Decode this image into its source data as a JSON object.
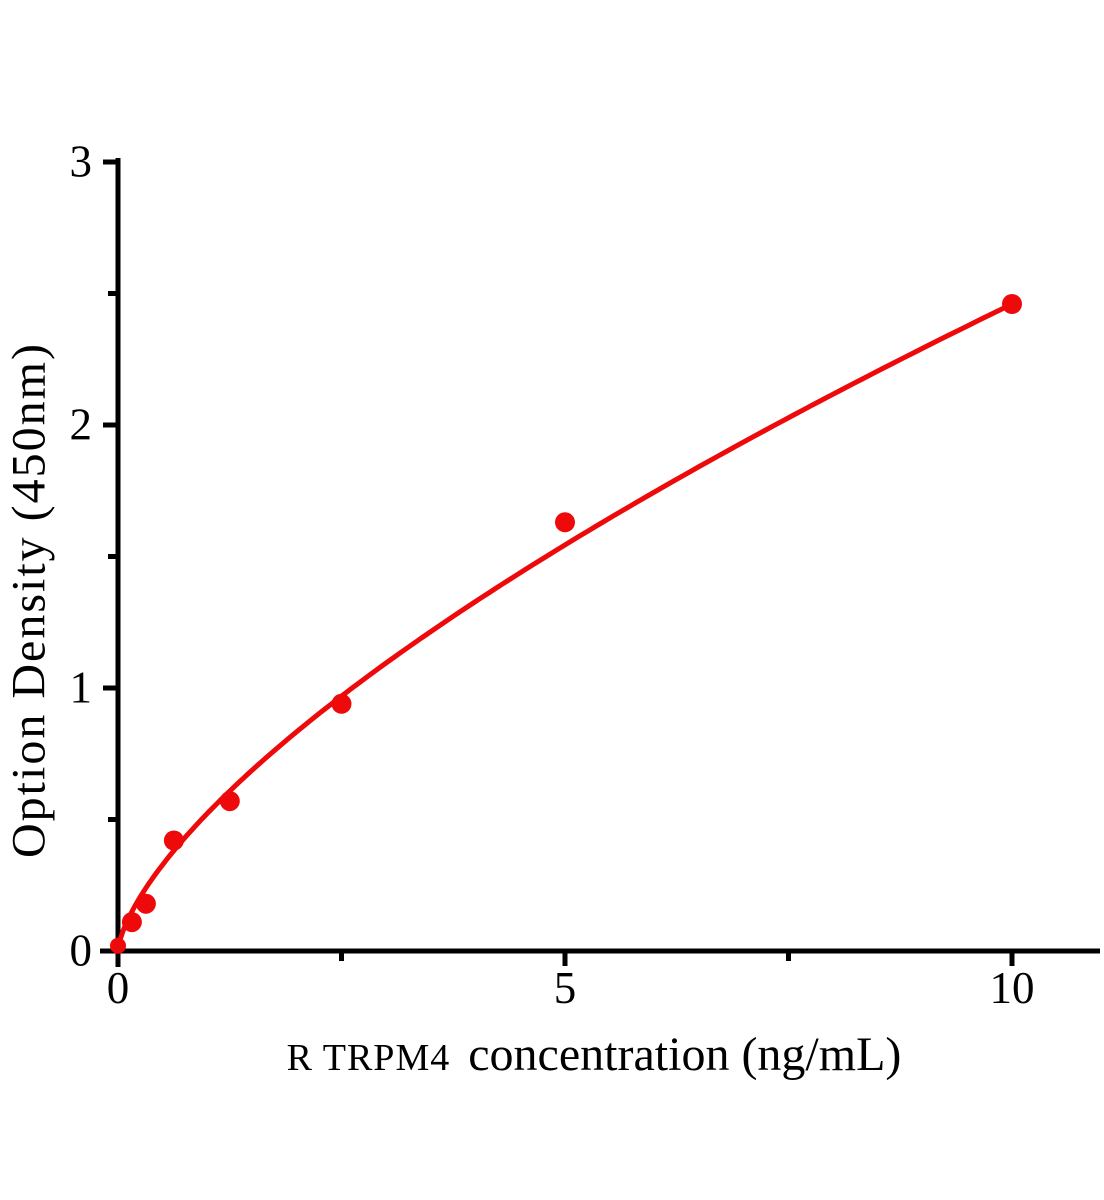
{
  "figure": {
    "background": "#ffffff",
    "kind": "ELISA standard curve"
  },
  "chart_data": {
    "type": "scatter",
    "title": "",
    "xlabel": "R TRPM4 concentration (ng/mL)",
    "xlabel_parts": [
      "R TRPM4",
      "concentration (ng/mL)"
    ],
    "ylabel": "Option Density (450nm)",
    "xlim": [
      0,
      11
    ],
    "ylim": [
      0,
      3.1
    ],
    "grid": false,
    "legend": false,
    "axis_color": "#000000",
    "x_ticks": {
      "major": [
        0,
        5,
        10
      ],
      "minor": [
        2.5,
        7.5
      ],
      "labels": [
        "0",
        "5",
        "10"
      ]
    },
    "y_ticks": {
      "major": [
        0,
        1,
        2,
        3
      ],
      "minor": [
        0.5,
        1.5,
        2.5
      ],
      "labels": [
        "0",
        "1",
        "2",
        "3"
      ]
    },
    "series": [
      {
        "name": "standard-curve",
        "color": "#ee0a0a",
        "marker": "circle",
        "points": [
          {
            "x": 0,
            "y": 0.02
          },
          {
            "x": 0.156,
            "y": 0.11
          },
          {
            "x": 0.3125,
            "y": 0.18
          },
          {
            "x": 0.625,
            "y": 0.42
          },
          {
            "x": 1.25,
            "y": 0.57
          },
          {
            "x": 2.5,
            "y": 0.94
          },
          {
            "x": 5,
            "y": 1.63
          },
          {
            "x": 10,
            "y": 2.46
          }
        ],
        "fit": {
          "type": "power",
          "a": 0.5235,
          "b": 0.672,
          "x_start": 0,
          "x_end": 10
        }
      }
    ]
  }
}
